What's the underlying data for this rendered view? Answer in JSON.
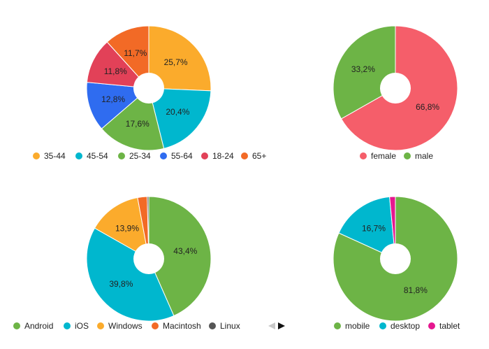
{
  "chart_data": [
    {
      "type": "pie",
      "categories": [
        "35-44",
        "45-54",
        "25-34",
        "55-64",
        "18-24",
        "65+"
      ],
      "values": [
        25.7,
        20.4,
        17.6,
        12.8,
        11.8,
        11.7
      ],
      "labels": [
        "25,7%",
        "20,4%",
        "17,6%",
        "12,8%",
        "11,8%",
        "11,7%"
      ],
      "colors": [
        "#fbab2c",
        "#00b7ce",
        "#6db446",
        "#2f6cf0",
        "#e24158",
        "#f26a26"
      ],
      "title": "",
      "legend": "bottom"
    },
    {
      "type": "pie",
      "categories": [
        "female",
        "male"
      ],
      "values": [
        66.8,
        33.2
      ],
      "labels": [
        "66,8%",
        "33,2%"
      ],
      "colors": [
        "#f55e6a",
        "#6db446"
      ],
      "title": "",
      "legend": "bottom"
    },
    {
      "type": "pie",
      "categories": [
        "Android",
        "iOS",
        "Windows",
        "Macintosh",
        "Linux"
      ],
      "values": [
        43.4,
        39.8,
        13.9,
        2.5,
        0.4
      ],
      "labels": [
        "43,4%",
        "39,8%",
        "13,9%",
        "",
        ""
      ],
      "colors": [
        "#6db446",
        "#00b7ce",
        "#fbab2c",
        "#f26a26",
        "#555555"
      ],
      "title": "",
      "legend": "bottom",
      "legend_paged": true
    },
    {
      "type": "pie",
      "categories": [
        "mobile",
        "desktop",
        "tablet"
      ],
      "values": [
        81.8,
        16.7,
        1.5
      ],
      "labels": [
        "81,8%",
        "16,7%",
        ""
      ],
      "colors": [
        "#6db446",
        "#00b7ce",
        "#e5178f"
      ],
      "title": "",
      "legend": "bottom"
    }
  ],
  "icons": {
    "legend_prev": "triangle-left-icon",
    "legend_next": "triangle-right-icon"
  }
}
